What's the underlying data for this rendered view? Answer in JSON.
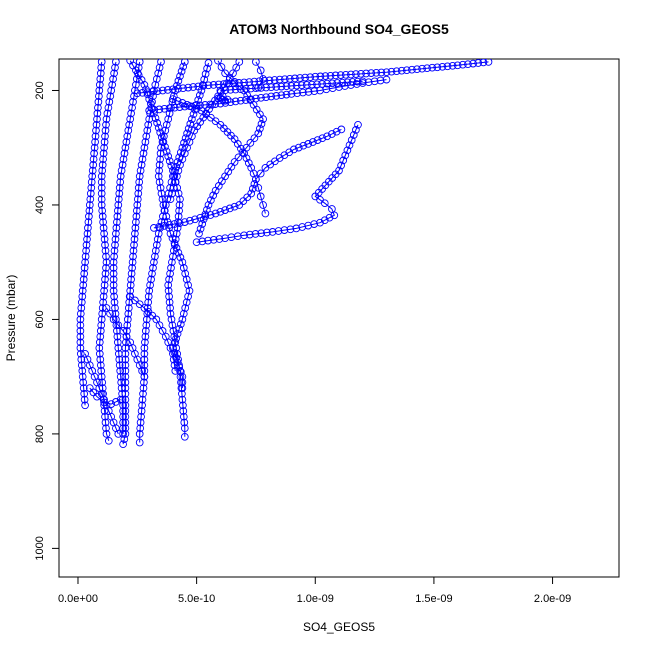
{
  "chart_data": {
    "type": "scatter",
    "title": "ATOM3 Northbound SO4_GEOS5",
    "xlabel": "SO4_GEOS5",
    "ylabel": "Pressure (mbar)",
    "xlim": [
      -8e-11,
      2.28e-09
    ],
    "ylim": [
      1050,
      145
    ],
    "y_reversed": true,
    "x_ticks": [
      0,
      5e-10,
      1e-09,
      1.5e-09,
      2e-09
    ],
    "x_tick_labels": [
      "0.0e+00",
      "5.0e-10",
      "1.0e-09",
      "1.5e-09",
      "2.0e-09"
    ],
    "y_ticks": [
      200,
      400,
      600,
      800,
      1000
    ],
    "y_tick_labels": [
      "200",
      "400",
      "600",
      "800",
      "1000"
    ],
    "grid": false,
    "legend": "none",
    "marker": "open-circle",
    "line_style": "line-and-points",
    "series_color": "#0000ff",
    "series": [
      {
        "points": [
          [
            5e-10,
            465
          ],
          [
            6.2e-10,
            458
          ],
          [
            7e-10,
            453
          ],
          [
            8.2e-10,
            447
          ],
          [
            9.2e-10,
            441
          ],
          [
            1.02e-09,
            431
          ],
          [
            1.08e-09,
            418
          ],
          [
            1.07e-09,
            407
          ],
          [
            1.04e-09,
            397
          ],
          [
            1e-09,
            385
          ],
          [
            1.1e-09,
            340
          ],
          [
            1.18e-09,
            260
          ]
        ]
      },
      {
        "points": [
          [
            2.5e-10,
            205
          ],
          [
            4e-10,
            198
          ],
          [
            5.5e-10,
            191
          ],
          [
            7e-10,
            186
          ],
          [
            8.5e-10,
            181
          ],
          [
            1e-09,
            176
          ],
          [
            1.15e-09,
            172
          ],
          [
            1.3e-09,
            168
          ],
          [
            1.45e-09,
            162
          ],
          [
            1.6e-09,
            156
          ],
          [
            1.73e-09,
            150
          ]
        ]
      },
      {
        "points": [
          [
            3e-10,
            235
          ],
          [
            4.5e-10,
            228
          ],
          [
            6e-10,
            223
          ],
          [
            7.5e-10,
            214
          ],
          [
            9e-10,
            206
          ],
          [
            1.02e-09,
            200
          ],
          [
            1.1e-09,
            194
          ],
          [
            1.2e-09,
            187
          ],
          [
            1.3e-09,
            181
          ]
        ]
      },
      {
        "points": [
          [
            6e-10,
            200
          ],
          [
            7.5e-10,
            196
          ],
          [
            9e-10,
            192
          ],
          [
            1.05e-09,
            188
          ],
          [
            1.2e-09,
            184
          ]
        ]
      },
      {
        "points": [
          [
            3.2e-10,
            440
          ],
          [
            4.5e-10,
            430
          ],
          [
            5.8e-10,
            415
          ],
          [
            6.8e-10,
            400
          ],
          [
            7.3e-10,
            380
          ],
          [
            7.5e-10,
            355
          ],
          [
            7.9e-10,
            335
          ],
          [
            8.5e-10,
            318
          ],
          [
            9.1e-10,
            303
          ],
          [
            9.9e-10,
            290
          ],
          [
            1.05e-09,
            280
          ],
          [
            1.11e-09,
            268
          ]
        ]
      },
      {
        "points": [
          [
            4e-10,
            215
          ],
          [
            5.2e-10,
            235
          ],
          [
            6e-10,
            260
          ],
          [
            6.6e-10,
            285
          ],
          [
            7e-10,
            310
          ],
          [
            7.3e-10,
            335
          ],
          [
            7.5e-10,
            355
          ],
          [
            7.6e-10,
            370
          ],
          [
            7.7e-10,
            385
          ],
          [
            7.8e-10,
            400
          ],
          [
            7.9e-10,
            415
          ]
        ]
      },
      {
        "points": [
          [
            5.9e-10,
            148
          ],
          [
            6.2e-10,
            170
          ],
          [
            6.6e-10,
            185
          ],
          [
            7e-10,
            200
          ],
          [
            7.4e-10,
            225
          ],
          [
            7.8e-10,
            250
          ],
          [
            7.6e-10,
            275
          ],
          [
            7.1e-10,
            300
          ],
          [
            6.6e-10,
            325
          ],
          [
            6.2e-10,
            350
          ],
          [
            5.8e-10,
            375
          ],
          [
            5.5e-10,
            400
          ],
          [
            5.3e-10,
            425
          ],
          [
            5.1e-10,
            450
          ]
        ]
      },
      {
        "points": [
          [
            6e-10,
            213
          ],
          [
            6.1e-10,
            216
          ],
          [
            6.2e-10,
            218
          ],
          [
            6.3e-10,
            216
          ],
          [
            6.1e-10,
            210
          ],
          [
            5.9e-10,
            214
          ]
        ]
      },
      {
        "points": [
          [
            2.2e-10,
            148
          ],
          [
            2.8e-10,
            190
          ],
          [
            3.2e-10,
            240
          ],
          [
            3.6e-10,
            290
          ],
          [
            4e-10,
            340
          ],
          [
            4.3e-10,
            390
          ],
          [
            4.2e-10,
            440
          ],
          [
            4e-10,
            490
          ],
          [
            3.8e-10,
            540
          ],
          [
            3.9e-10,
            590
          ],
          [
            4.1e-10,
            640
          ],
          [
            4.3e-10,
            690
          ],
          [
            4.4e-10,
            740
          ],
          [
            4.5e-10,
            790
          ],
          [
            4.5e-10,
            805
          ]
        ]
      },
      {
        "points": [
          [
            5.5e-10,
            152
          ],
          [
            5.2e-10,
            200
          ],
          [
            4.8e-10,
            250
          ],
          [
            4.4e-10,
            300
          ],
          [
            4e-10,
            350
          ],
          [
            3.7e-10,
            400
          ],
          [
            3.4e-10,
            450
          ],
          [
            3.2e-10,
            500
          ],
          [
            3e-10,
            550
          ],
          [
            2.9e-10,
            600
          ],
          [
            2.8e-10,
            650
          ],
          [
            2.8e-10,
            700
          ],
          [
            2.7e-10,
            750
          ],
          [
            2.6e-10,
            800
          ],
          [
            2.6e-10,
            815
          ]
        ]
      },
      {
        "points": [
          [
            4.5e-10,
            150
          ],
          [
            4.1e-10,
            200
          ],
          [
            3.8e-10,
            250
          ],
          [
            3.5e-10,
            300
          ],
          [
            3.4e-10,
            350
          ],
          [
            3.6e-10,
            400
          ],
          [
            3.9e-10,
            450
          ],
          [
            4.4e-10,
            500
          ],
          [
            4.7e-10,
            550
          ],
          [
            4.4e-10,
            600
          ],
          [
            4e-10,
            650
          ],
          [
            4.4e-10,
            700
          ],
          [
            4.4e-10,
            720
          ]
        ]
      },
      {
        "points": [
          [
            3.5e-10,
            150
          ],
          [
            3.2e-10,
            200
          ],
          [
            3e-10,
            250
          ],
          [
            2.8e-10,
            300
          ],
          [
            2.6e-10,
            350
          ],
          [
            2.5e-10,
            400
          ],
          [
            2.4e-10,
            450
          ],
          [
            2.3e-10,
            500
          ],
          [
            2.2e-10,
            550
          ],
          [
            2.1e-10,
            600
          ],
          [
            2e-10,
            650
          ],
          [
            2e-10,
            700
          ],
          [
            2e-10,
            750
          ],
          [
            2e-10,
            800
          ],
          [
            1.9e-10,
            818
          ]
        ]
      },
      {
        "points": [
          [
            1e-10,
            150
          ],
          [
            9e-11,
            200
          ],
          [
            8e-11,
            250
          ],
          [
            7e-11,
            300
          ],
          [
            6e-11,
            350
          ],
          [
            5e-11,
            400
          ],
          [
            4e-11,
            450
          ],
          [
            3e-11,
            500
          ],
          [
            2e-11,
            550
          ],
          [
            1e-11,
            600
          ],
          [
            1e-11,
            650
          ],
          [
            2e-11,
            700
          ],
          [
            3e-11,
            750
          ]
        ]
      },
      {
        "points": [
          [
            1.6e-10,
            150
          ],
          [
            1.4e-10,
            200
          ],
          [
            1.2e-10,
            250
          ],
          [
            1.1e-10,
            300
          ],
          [
            1e-10,
            350
          ],
          [
            1e-10,
            400
          ],
          [
            1.1e-10,
            450
          ],
          [
            1.2e-10,
            500
          ],
          [
            1.1e-10,
            550
          ],
          [
            1e-10,
            600
          ],
          [
            9e-11,
            650
          ],
          [
            1e-10,
            700
          ],
          [
            1.1e-10,
            750
          ],
          [
            1.2e-10,
            800
          ],
          [
            1.3e-10,
            812
          ]
        ]
      },
      {
        "points": [
          [
            2.6e-10,
            150
          ],
          [
            2.4e-10,
            200
          ],
          [
            2.2e-10,
            250
          ],
          [
            2e-10,
            300
          ],
          [
            1.8e-10,
            350
          ],
          [
            1.7e-10,
            400
          ],
          [
            1.6e-10,
            450
          ],
          [
            1.5e-10,
            500
          ],
          [
            1.5e-10,
            550
          ],
          [
            1.6e-10,
            600
          ],
          [
            1.7e-10,
            650
          ],
          [
            1.8e-10,
            700
          ],
          [
            1.9e-10,
            750
          ],
          [
            1.9e-10,
            800
          ]
        ]
      },
      {
        "points": [
          [
            6.8e-10,
            150
          ],
          [
            6.4e-10,
            180
          ],
          [
            5.9e-10,
            210
          ],
          [
            5.4e-10,
            240
          ],
          [
            4.9e-10,
            270
          ],
          [
            4.6e-10,
            300
          ],
          [
            4.3e-10,
            330
          ],
          [
            4.1e-10,
            360
          ],
          [
            3.9e-10,
            390
          ]
        ]
      },
      {
        "points": [
          [
            7.5e-10,
            150
          ],
          [
            7.7e-10,
            165
          ],
          [
            7.8e-10,
            180
          ],
          [
            7.6e-10,
            195
          ]
        ]
      },
      {
        "points": [
          [
            1.2e-10,
            580
          ],
          [
            1.5e-10,
            600
          ],
          [
            1.9e-10,
            620
          ],
          [
            2.2e-10,
            640
          ],
          [
            2.4e-10,
            660
          ],
          [
            2.6e-10,
            680
          ],
          [
            2.8e-10,
            700
          ]
        ]
      },
      {
        "points": [
          [
            2.2e-10,
            560
          ],
          [
            2.8e-10,
            580
          ],
          [
            3.3e-10,
            600
          ],
          [
            3.7e-10,
            630
          ],
          [
            4e-10,
            660
          ],
          [
            4.1e-10,
            690
          ]
        ]
      },
      {
        "points": [
          [
            5e-11,
            720
          ],
          [
            8e-11,
            735
          ],
          [
            1.1e-10,
            745
          ],
          [
            1.4e-10,
            748
          ],
          [
            1.8e-10,
            740
          ]
        ]
      },
      {
        "points": [
          [
            3e-11,
            660
          ],
          [
            5e-11,
            680
          ],
          [
            7e-11,
            700
          ],
          [
            9e-11,
            720
          ],
          [
            1.1e-10,
            740
          ],
          [
            1.3e-10,
            760
          ],
          [
            1.5e-10,
            780
          ],
          [
            1.7e-10,
            800
          ]
        ]
      }
    ]
  }
}
